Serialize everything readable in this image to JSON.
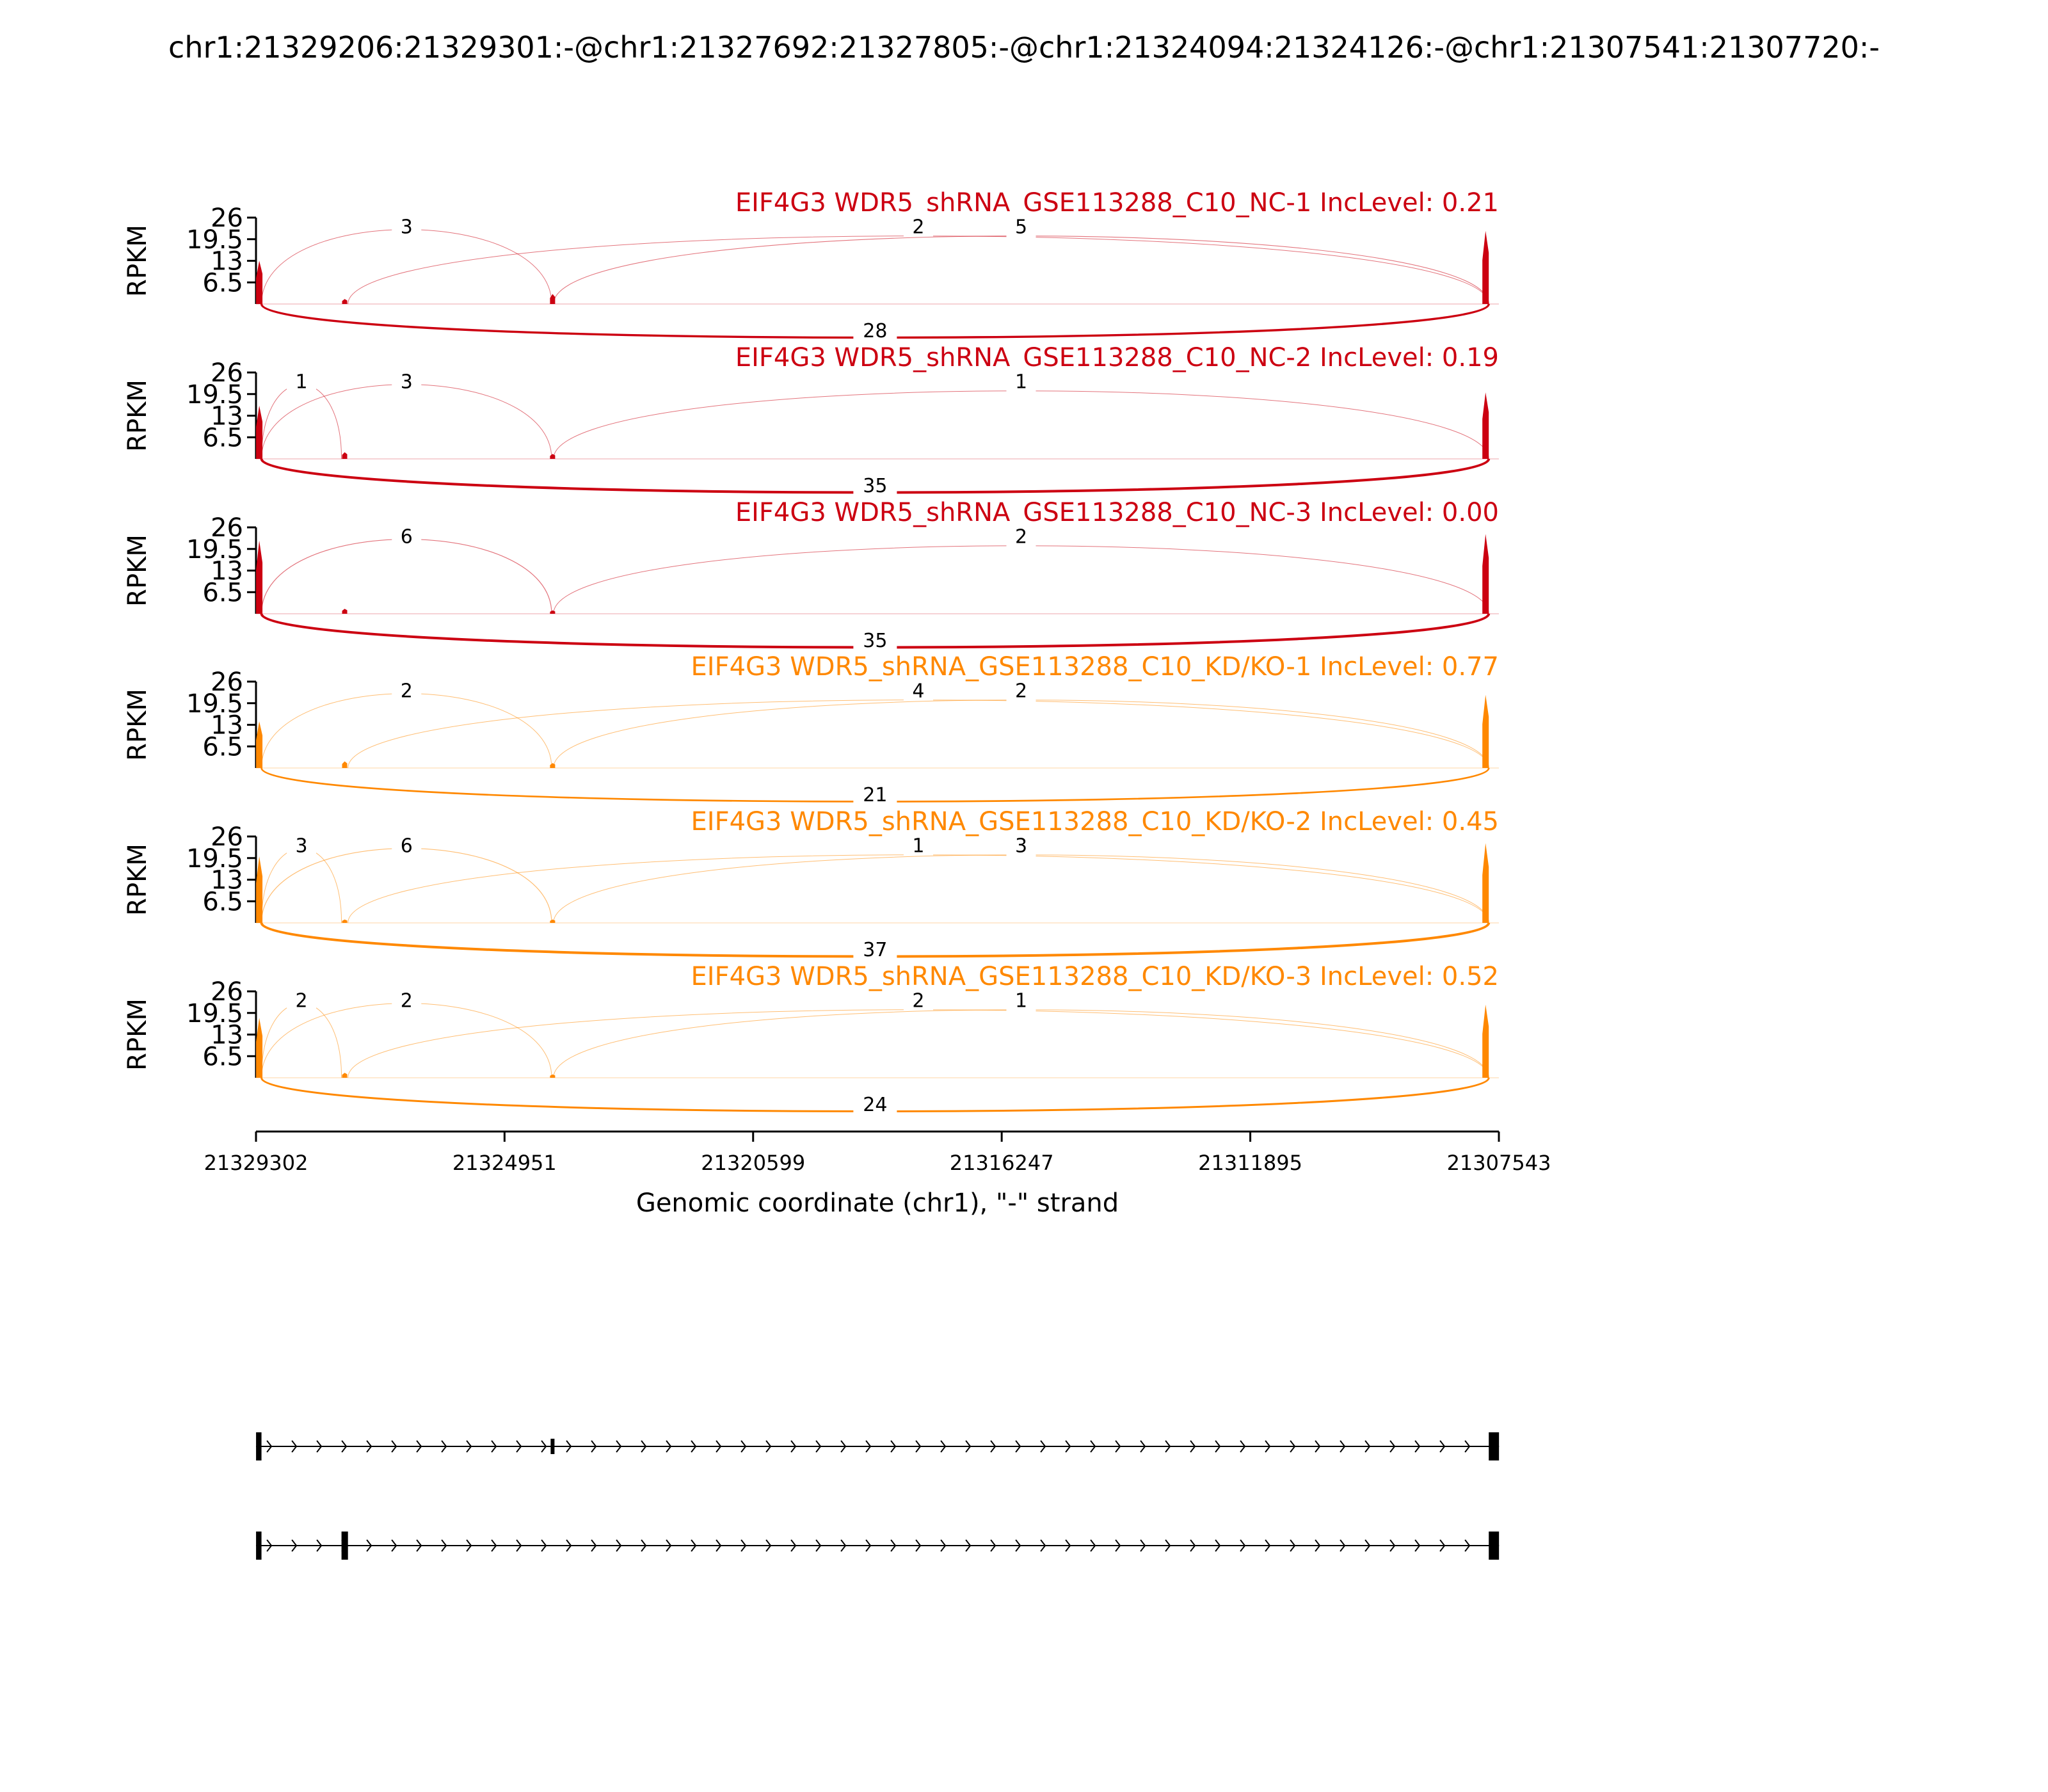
{
  "figure_title": "chr1:21329206:21329301:-@chr1:21327692:21327805:-@chr1:21324094:21324126:-@chr1:21307541:21307720:-",
  "colors": {
    "nc": "#cc0011",
    "kd": "#ff8800",
    "axis": "#000000"
  },
  "chart_data": {
    "type": "area",
    "subtype": "sashimi",
    "title": "chr1:21329206:21329301:-@chr1:21327692:21327805:-@chr1:21324094:21324126:-@chr1:21307541:21307720:-",
    "ylabel": "RPKM",
    "yticks": [
      "6.5",
      "13",
      "19.5",
      "26"
    ],
    "ylim": [
      0,
      26
    ],
    "xlabel": "Genomic coordinate (chr1), \"-\" strand",
    "xticks": [
      "21329302",
      "21324951",
      "21320599",
      "21316247",
      "21311895",
      "21307543"
    ],
    "xlim": [
      21329302,
      21307543
    ],
    "panels": [
      {
        "label": "EIF4G3 WDR5_shRNA_GSE113288_C10_NC-1 IncLevel: 0.21",
        "group": "nc",
        "coverage": [
          [
            21329301,
            13
          ],
          [
            21327750,
            1.5
          ],
          [
            21324110,
            3
          ],
          [
            21307720,
            22
          ]
        ],
        "junctions": [
          {
            "from": 21329206,
            "to": 21324126,
            "count": "3",
            "side": "above"
          },
          {
            "from": 21327692,
            "to": 21307720,
            "count": "2",
            "side": "above"
          },
          {
            "from": 21324094,
            "to": 21307720,
            "count": "5",
            "side": "above"
          },
          {
            "from": 21329206,
            "to": 21307720,
            "count": "28",
            "side": "below"
          }
        ]
      },
      {
        "label": "EIF4G3 WDR5_shRNA_GSE113288_C10_NC-2 IncLevel: 0.19",
        "group": "nc",
        "coverage": [
          [
            21329301,
            16
          ],
          [
            21327750,
            2
          ],
          [
            21324110,
            1.5
          ],
          [
            21307720,
            20
          ]
        ],
        "junctions": [
          {
            "from": 21329206,
            "to": 21327805,
            "count": "1",
            "side": "above"
          },
          {
            "from": 21329206,
            "to": 21324126,
            "count": "3",
            "side": "above"
          },
          {
            "from": 21324094,
            "to": 21307720,
            "count": "1",
            "side": "above"
          },
          {
            "from": 21329206,
            "to": 21307720,
            "count": "35",
            "side": "below"
          }
        ]
      },
      {
        "label": "EIF4G3 WDR5_shRNA_GSE113288_C10_NC-3 IncLevel: 0.00",
        "group": "nc",
        "coverage": [
          [
            21329301,
            22
          ],
          [
            21327750,
            1.5
          ],
          [
            21324110,
            1
          ],
          [
            21307720,
            24
          ]
        ],
        "junctions": [
          {
            "from": 21329206,
            "to": 21324126,
            "count": "6",
            "side": "above"
          },
          {
            "from": 21324094,
            "to": 21307720,
            "count": "2",
            "side": "above"
          },
          {
            "from": 21329206,
            "to": 21307720,
            "count": "35",
            "side": "below"
          }
        ]
      },
      {
        "label": "EIF4G3 WDR5_shRNA_GSE113288_C10_KD/KO-1 IncLevel: 0.77",
        "group": "kd",
        "coverage": [
          [
            21329301,
            14
          ],
          [
            21327750,
            2
          ],
          [
            21324110,
            1.5
          ],
          [
            21307720,
            22
          ]
        ],
        "junctions": [
          {
            "from": 21329206,
            "to": 21324126,
            "count": "2",
            "side": "above"
          },
          {
            "from": 21327692,
            "to": 21307720,
            "count": "4",
            "side": "above"
          },
          {
            "from": 21324094,
            "to": 21307720,
            "count": "2",
            "side": "above"
          },
          {
            "from": 21329206,
            "to": 21307720,
            "count": "21",
            "side": "below"
          }
        ]
      },
      {
        "label": "EIF4G3 WDR5_shRNA_GSE113288_C10_KD/KO-2 IncLevel: 0.45",
        "group": "kd",
        "coverage": [
          [
            21329301,
            20
          ],
          [
            21327750,
            1
          ],
          [
            21324110,
            1
          ],
          [
            21307720,
            24
          ]
        ],
        "junctions": [
          {
            "from": 21329206,
            "to": 21327805,
            "count": "3",
            "side": "above"
          },
          {
            "from": 21329206,
            "to": 21324126,
            "count": "6",
            "side": "above"
          },
          {
            "from": 21327692,
            "to": 21307720,
            "count": "1",
            "side": "above"
          },
          {
            "from": 21324094,
            "to": 21307720,
            "count": "3",
            "side": "above"
          },
          {
            "from": 21329206,
            "to": 21307720,
            "count": "37",
            "side": "below"
          }
        ]
      },
      {
        "label": "EIF4G3 WDR5_shRNA_GSE113288_C10_KD/KO-3 IncLevel: 0.52",
        "group": "kd",
        "coverage": [
          [
            21329301,
            18
          ],
          [
            21327750,
            1.5
          ],
          [
            21324110,
            1
          ],
          [
            21307720,
            22
          ]
        ],
        "junctions": [
          {
            "from": 21329206,
            "to": 21327805,
            "count": "2",
            "side": "above"
          },
          {
            "from": 21329206,
            "to": 21324126,
            "count": "2",
            "side": "above"
          },
          {
            "from": 21327692,
            "to": 21307720,
            "count": "2",
            "side": "above"
          },
          {
            "from": 21324094,
            "to": 21307720,
            "count": "1",
            "side": "above"
          },
          {
            "from": 21329206,
            "to": 21307720,
            "count": "24",
            "side": "below"
          }
        ]
      }
    ],
    "isoforms": [
      {
        "exons": [
          [
            21329301,
            21329206
          ],
          [
            21324126,
            21324094
          ],
          [
            21307720,
            21307541
          ]
        ]
      },
      {
        "exons": [
          [
            21329301,
            21329206
          ],
          [
            21327805,
            21327692
          ],
          [
            21307720,
            21307541
          ]
        ]
      }
    ]
  }
}
